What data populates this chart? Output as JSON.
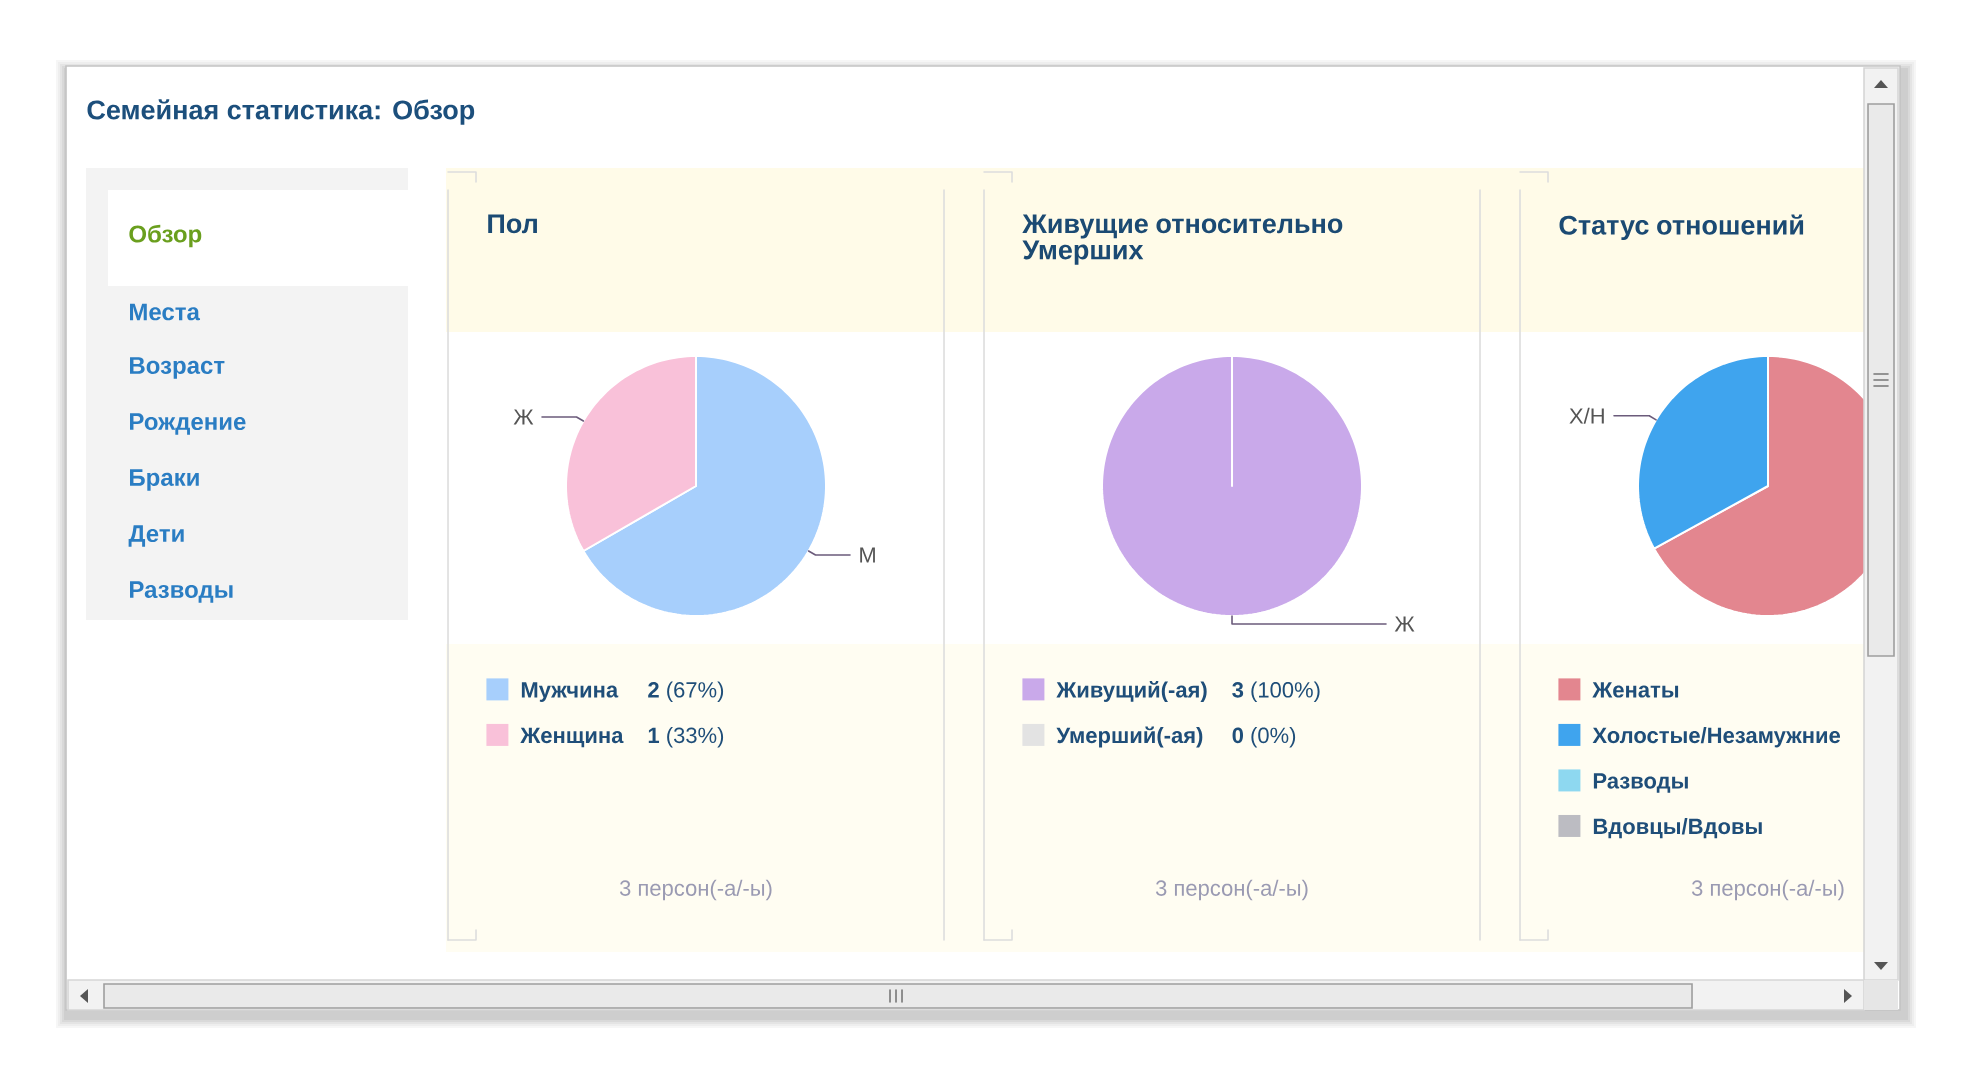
{
  "chart_data": [
    {
      "type": "other",
      "title": "Семейная статистика: Обзор",
      "annotations": [
        "Обзор",
        "Места",
        "Возраст",
        "Рождение",
        "Браки",
        "Дети",
        "Разводы"
      ]
    },
    {
      "type": "pie",
      "title": "Пол",
      "categories": [
        "Мужчина",
        "Женщина"
      ],
      "values": [
        2,
        1
      ],
      "colors": [
        "#a7cffc",
        "#f9c1d9"
      ],
      "value_labels": [
        "**2** (67%)",
        "**1** (33%)"
      ],
      "legend": "bottom",
      "annotations": [
        {
          "text": "М",
          "x": "Мужчина"
        },
        {
          "text": "Ж",
          "x": "Женщина"
        },
        "3 персон(-а/-ы)"
      ]
    },
    {
      "type": "pie",
      "title": "Живущие относительно Умерших",
      "categories": [
        "Живущий(-ая)",
        "Умерший(-ая)"
      ],
      "values": [
        3,
        0
      ],
      "colors": [
        "#c9a9ea",
        "#e3e3e3"
      ],
      "value_labels": [
        "**3** (100%)",
        "**0** (0%)"
      ],
      "legend": "bottom",
      "annotations": [
        {
          "text": "Ж",
          "x": "Живущий(-ая)"
        },
        "3 персон(-а/-ы)"
      ]
    },
    {
      "type": "pie",
      "title": "Статус отношений",
      "categories": [
        "Женаты",
        "Холостые/Незамужние",
        "Разводы",
        "Вдовцы/Вдовы"
      ],
      "values": [
        67,
        33,
        0,
        0
      ],
      "colors": [
        "#e3868f",
        "#3fa4ee",
        "#8ed8f0",
        "#bcbcc2"
      ],
      "legend": "bottom",
      "annotations": [
        {
          "text": "Х/Н",
          "x": "Холостые/Незамужние"
        },
        "3 персон(-а/-ы)"
      ]
    }
  ]
}
